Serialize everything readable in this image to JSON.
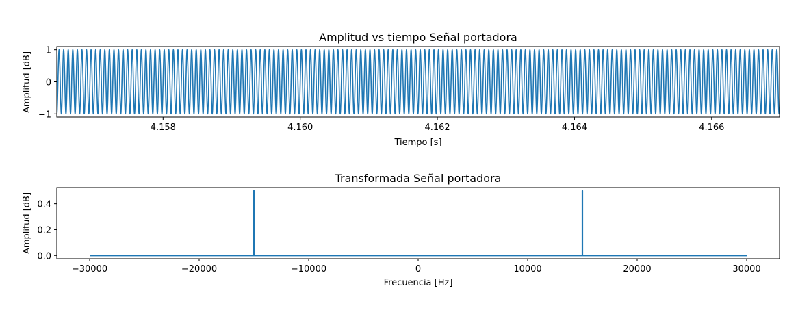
{
  "chart_data": [
    {
      "type": "line",
      "title": "Amplitud vs tiempo Señal portadora",
      "xlabel": "Tiempo [s]",
      "ylabel": "Amplitud [dB]",
      "xlim": [
        4.15645,
        4.16699
      ],
      "ylim": [
        -1.1,
        1.1
      ],
      "xticks": [
        4.158,
        4.16,
        4.162,
        4.164,
        4.166
      ],
      "xtick_labels": [
        "4.158",
        "4.160",
        "4.162",
        "4.164",
        "4.166"
      ],
      "yticks": [
        1,
        0,
        -1
      ],
      "ytick_labels": [
        "1",
        "0",
        "−1"
      ],
      "series": [
        {
          "function": "sin",
          "amplitude": 1,
          "frequency_hz": 15000,
          "color": "#1f77b4"
        }
      ]
    },
    {
      "type": "line",
      "title": "Transformada Señal portadora",
      "xlabel": "Frecuencia [Hz]",
      "ylabel": "Amplitud [dB]",
      "xlim": [
        -33000,
        33000
      ],
      "ylim": [
        -0.025,
        0.525
      ],
      "xticks": [
        -30000,
        -20000,
        -10000,
        0,
        10000,
        20000,
        30000
      ],
      "xtick_labels": [
        "−30000",
        "−20000",
        "−10000",
        "0",
        "10000",
        "20000",
        "30000"
      ],
      "yticks": [
        0.4,
        0.2,
        0.0
      ],
      "ytick_labels": [
        "0.4",
        "0.2",
        "0.0"
      ],
      "series": [
        {
          "x": [
            -30000,
            -15000,
            -15000,
            -15000,
            15000,
            15000,
            15000,
            30000
          ],
          "y": [
            0,
            0,
            0.5,
            0,
            0,
            0.5,
            0,
            0
          ],
          "color": "#1f77b4"
        }
      ]
    }
  ]
}
